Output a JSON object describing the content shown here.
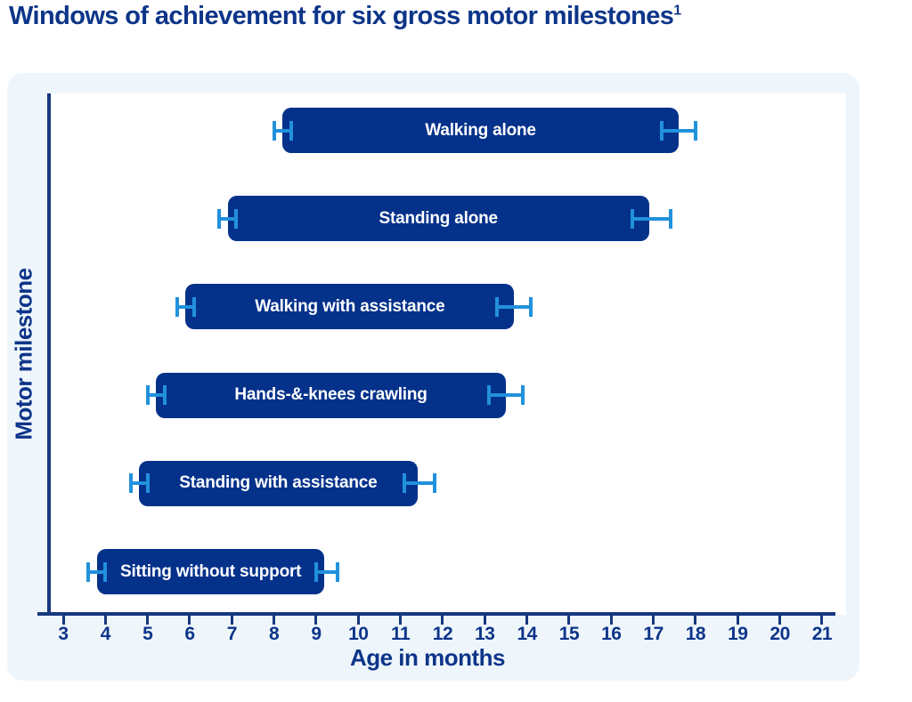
{
  "title": {
    "text": "Windows of achievement for six gross motor milestones",
    "superscript": "1"
  },
  "chart_data": {
    "type": "bar",
    "orientation": "horizontal",
    "title": "Windows of achievement for six gross motor milestones¹",
    "xlabel": "Age in months",
    "ylabel": "Motor milestone",
    "xlim": [
      3,
      21
    ],
    "x_ticks": [
      3,
      4,
      5,
      6,
      7,
      8,
      9,
      10,
      11,
      12,
      13,
      14,
      15,
      16,
      17,
      18,
      19,
      20,
      21
    ],
    "grid": false,
    "legend": "none",
    "milestones": [
      {
        "label": "Walking alone",
        "start": 8.2,
        "end": 17.6,
        "whisker_left": [
          8.0,
          8.4
        ],
        "whisker_right": [
          17.2,
          18.0
        ]
      },
      {
        "label": "Standing alone",
        "start": 6.9,
        "end": 16.9,
        "whisker_left": [
          6.7,
          7.1
        ],
        "whisker_right": [
          16.5,
          17.4
        ]
      },
      {
        "label": "Walking with assistance",
        "start": 5.9,
        "end": 13.7,
        "whisker_left": [
          5.7,
          6.1
        ],
        "whisker_right": [
          13.3,
          14.1
        ]
      },
      {
        "label": "Hands-&-knees crawling",
        "start": 5.2,
        "end": 13.5,
        "whisker_left": [
          5.0,
          5.4
        ],
        "whisker_right": [
          13.1,
          13.9
        ]
      },
      {
        "label": "Standing with assistance",
        "start": 4.8,
        "end": 11.4,
        "whisker_left": [
          4.6,
          5.0
        ],
        "whisker_right": [
          11.1,
          11.8
        ]
      },
      {
        "label": "Sitting without support",
        "start": 3.8,
        "end": 9.2,
        "whisker_left": [
          3.6,
          4.0
        ],
        "whisker_right": [
          9.0,
          9.5
        ]
      }
    ]
  },
  "colors": {
    "bar": "#04318a",
    "whisker": "#2191dc",
    "axis": "#16387f",
    "navy_text": "#0d3589",
    "panel_bg": "#eef5fb",
    "bar_text": "#ffffff"
  }
}
